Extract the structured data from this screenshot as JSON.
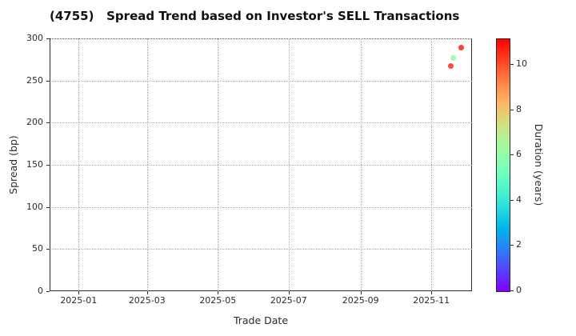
{
  "title": "(4755)   Spread Trend based on Investor's SELL Transactions",
  "chart_data": {
    "type": "scatter",
    "title": "(4755)   Spread Trend based on Investor's SELL Transactions",
    "grid": true,
    "legend_position": "colorbar-right",
    "x_axis": {
      "label": "Trade Date",
      "min": "2024-12-07",
      "max": "2025-12-06",
      "ticks": [
        {
          "date": "2025-01-01",
          "label": "2025-01"
        },
        {
          "date": "2025-03-01",
          "label": "2025-03"
        },
        {
          "date": "2025-05-01",
          "label": "2025-05"
        },
        {
          "date": "2025-07-01",
          "label": "2025-07"
        },
        {
          "date": "2025-09-01",
          "label": "2025-09"
        },
        {
          "date": "2025-11-01",
          "label": "2025-11"
        }
      ]
    },
    "y_axis": {
      "label": "Spread (bp)",
      "min": 0,
      "max": 300,
      "ticks": [
        0,
        50,
        100,
        150,
        200,
        250,
        300
      ]
    },
    "colorbar": {
      "label": "Duration (years)",
      "min": 0,
      "max": 11.1,
      "ticks": [
        0,
        2,
        4,
        6,
        8,
        10
      ],
      "colormap": "rainbow",
      "color_top": "#ff0000",
      "color_bottom": "#8000ff"
    },
    "points": [
      {
        "trade_date": "2025-11-18",
        "spread_bp": 267,
        "duration_years": 10.4
      },
      {
        "trade_date": "2025-11-20",
        "spread_bp": 277,
        "duration_years": 6.0
      },
      {
        "trade_date": "2025-11-27",
        "spread_bp": 289,
        "duration_years": 10.6
      }
    ]
  },
  "colors": {
    "background": "#ffffff",
    "grid": "#a8a8a8",
    "spine": "#2b2b2b",
    "text": "#1a1a1a"
  }
}
